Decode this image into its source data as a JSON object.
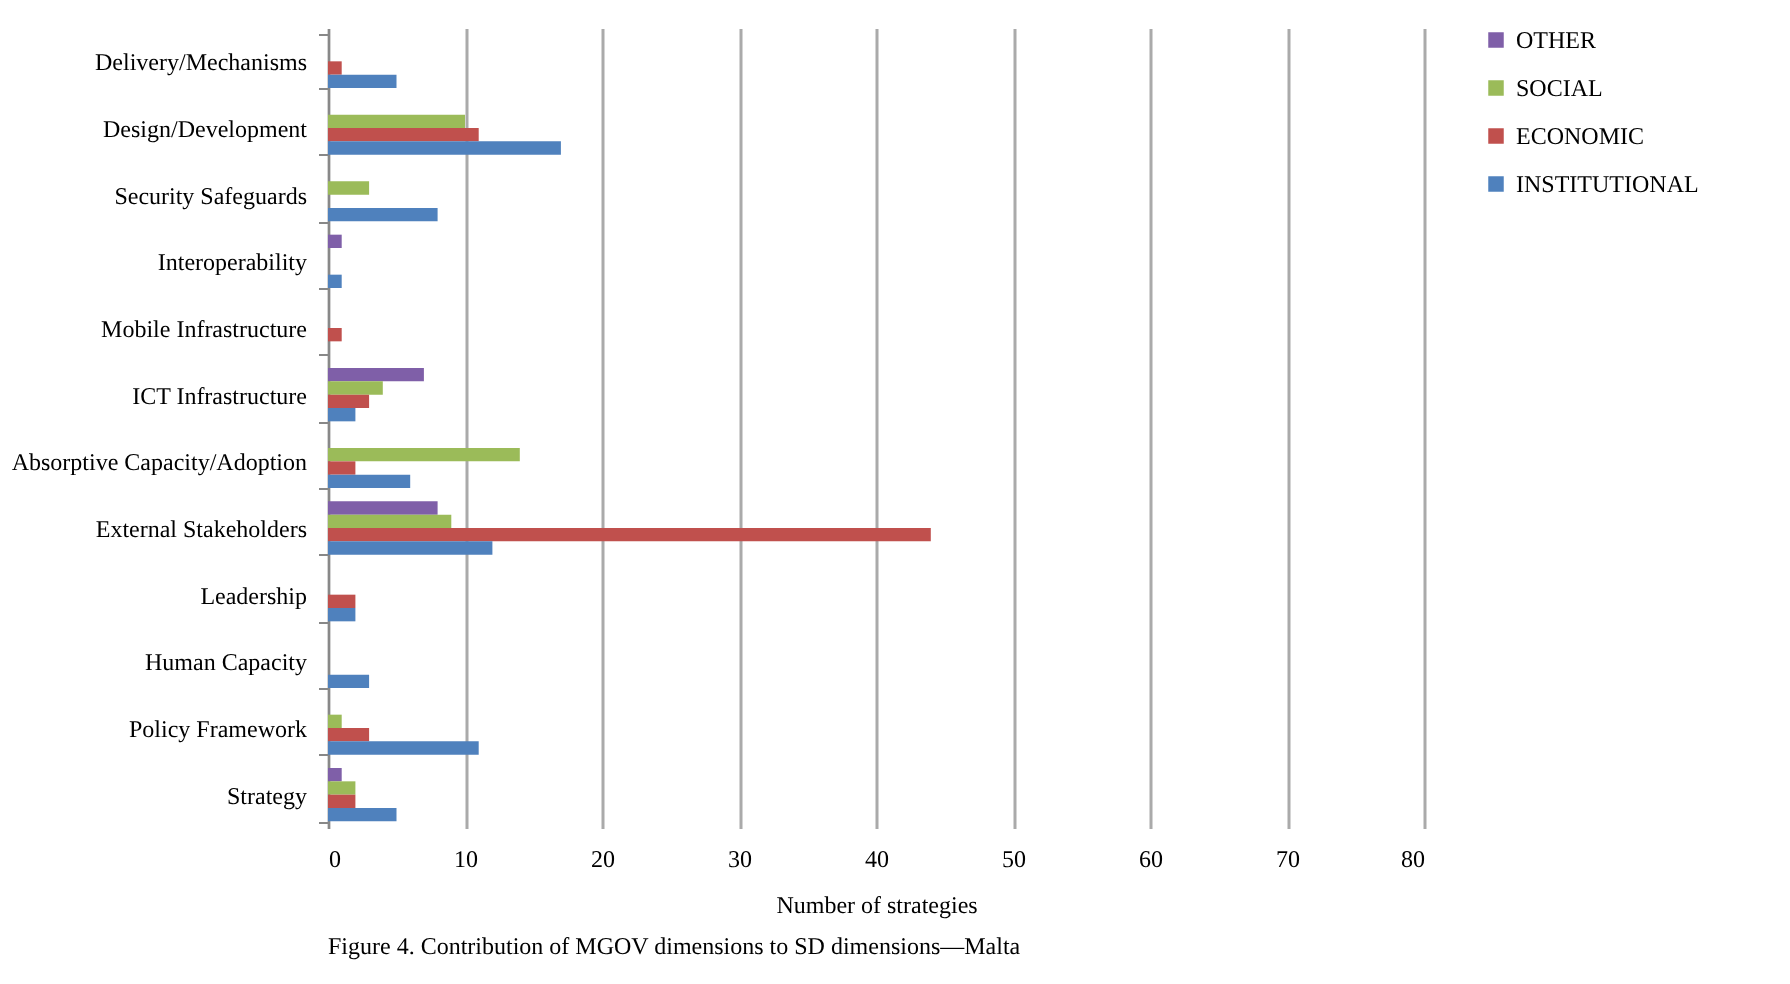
{
  "chart_data": {
    "type": "bar",
    "orientation": "horizontal",
    "xlabel": "Number of strategies",
    "categories": [
      "Delivery/Mechanisms",
      "Design/Development",
      "Security Safeguards",
      "Interoperability",
      "Mobile Infrastructure",
      "ICT Infrastructure",
      "Absorptive Capacity/Adoption",
      "External Stakeholders",
      "Leadership",
      "Human Capacity",
      "Policy Framework",
      "Strategy"
    ],
    "series": [
      {
        "name": "OTHER",
        "color": "#7f5fa8",
        "values": [
          null,
          null,
          null,
          1,
          null,
          7,
          null,
          8,
          null,
          null,
          null,
          1
        ]
      },
      {
        "name": "SOCIAL",
        "color": "#9bbb59",
        "values": [
          null,
          10,
          3,
          null,
          null,
          4,
          14,
          9,
          null,
          null,
          1,
          2
        ]
      },
      {
        "name": "ECONOMIC",
        "color": "#c0504d",
        "values": [
          1,
          11,
          null,
          null,
          1,
          3,
          2,
          44,
          2,
          null,
          3,
          2
        ]
      },
      {
        "name": "INSTITUTIONAL",
        "color": "#4f81bd",
        "values": [
          5,
          17,
          8,
          1,
          null,
          2,
          6,
          12,
          2,
          3,
          11,
          5
        ]
      }
    ],
    "xlim": [
      0,
      80
    ],
    "xticks": [
      0,
      10,
      20,
      30,
      40,
      50,
      60,
      70,
      80
    ],
    "grid": "x",
    "legend": "right",
    "annotations": [
      "Figure 4. Contribution of MGOV dimensions to SD dimensions—Malta"
    ]
  }
}
